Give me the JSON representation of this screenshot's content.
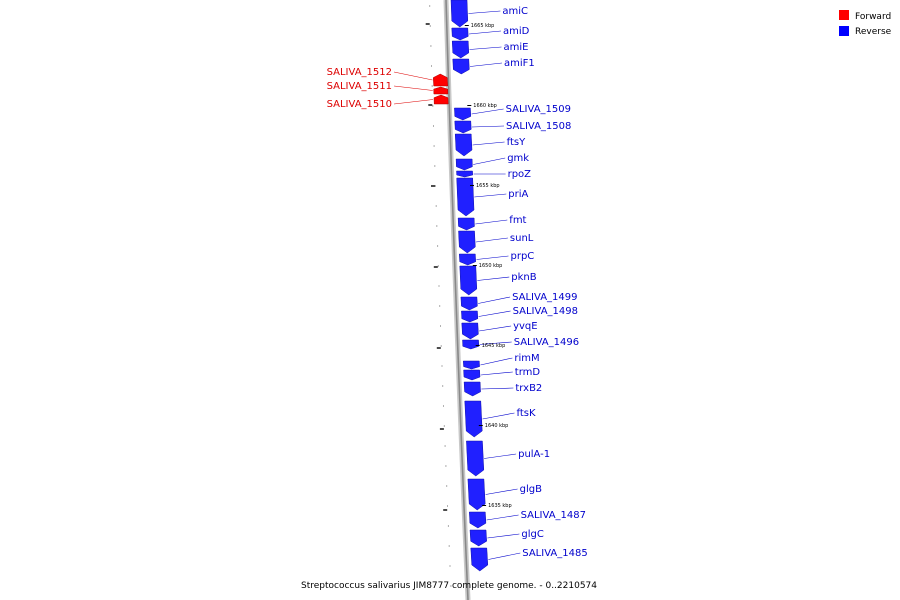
{
  "caption": "Streptococcus salivarius JIM8777 complete genome. - 0..2210574",
  "legend": [
    {
      "label": "Forward",
      "color": "#ff0000"
    },
    {
      "label": "Reverse",
      "color": "#0000ff"
    }
  ],
  "colors": {
    "forward": "#ff0000",
    "reverse": "#2020ff",
    "backbone": "#999999"
  },
  "position_labels": [
    "1665 kbp",
    "1660 kbp",
    "1655 kbp",
    "1650 kbp",
    "1645 kbp",
    "1640 kbp",
    "1635 kbp"
  ],
  "genes": [
    {
      "name": "amiC",
      "strand": "reverse"
    },
    {
      "name": "amiD",
      "strand": "reverse"
    },
    {
      "name": "amiE",
      "strand": "reverse"
    },
    {
      "name": "amiF1",
      "strand": "reverse"
    },
    {
      "name": "SALIVA_1512",
      "strand": "forward"
    },
    {
      "name": "SALIVA_1511",
      "strand": "forward"
    },
    {
      "name": "SALIVA_1510",
      "strand": "forward"
    },
    {
      "name": "SALIVA_1509",
      "strand": "reverse"
    },
    {
      "name": "SALIVA_1508",
      "strand": "reverse"
    },
    {
      "name": "ftsY",
      "strand": "reverse"
    },
    {
      "name": "gmk",
      "strand": "reverse"
    },
    {
      "name": "rpoZ",
      "strand": "reverse"
    },
    {
      "name": "priA",
      "strand": "reverse"
    },
    {
      "name": "fmt",
      "strand": "reverse"
    },
    {
      "name": "sunL",
      "strand": "reverse"
    },
    {
      "name": "prpC",
      "strand": "reverse"
    },
    {
      "name": "pknB",
      "strand": "reverse"
    },
    {
      "name": "SALIVA_1499",
      "strand": "reverse"
    },
    {
      "name": "SALIVA_1498",
      "strand": "reverse"
    },
    {
      "name": "yvqE",
      "strand": "reverse"
    },
    {
      "name": "SALIVA_1496",
      "strand": "reverse"
    },
    {
      "name": "rimM",
      "strand": "reverse"
    },
    {
      "name": "trmD",
      "strand": "reverse"
    },
    {
      "name": "trxB2",
      "strand": "reverse"
    },
    {
      "name": "ftsK",
      "strand": "reverse"
    },
    {
      "name": "pulA-1",
      "strand": "reverse"
    },
    {
      "name": "glgB",
      "strand": "reverse"
    },
    {
      "name": "SALIVA_1487",
      "strand": "reverse"
    },
    {
      "name": "glgC",
      "strand": "reverse"
    },
    {
      "name": "SALIVA_1485",
      "strand": "reverse"
    }
  ]
}
